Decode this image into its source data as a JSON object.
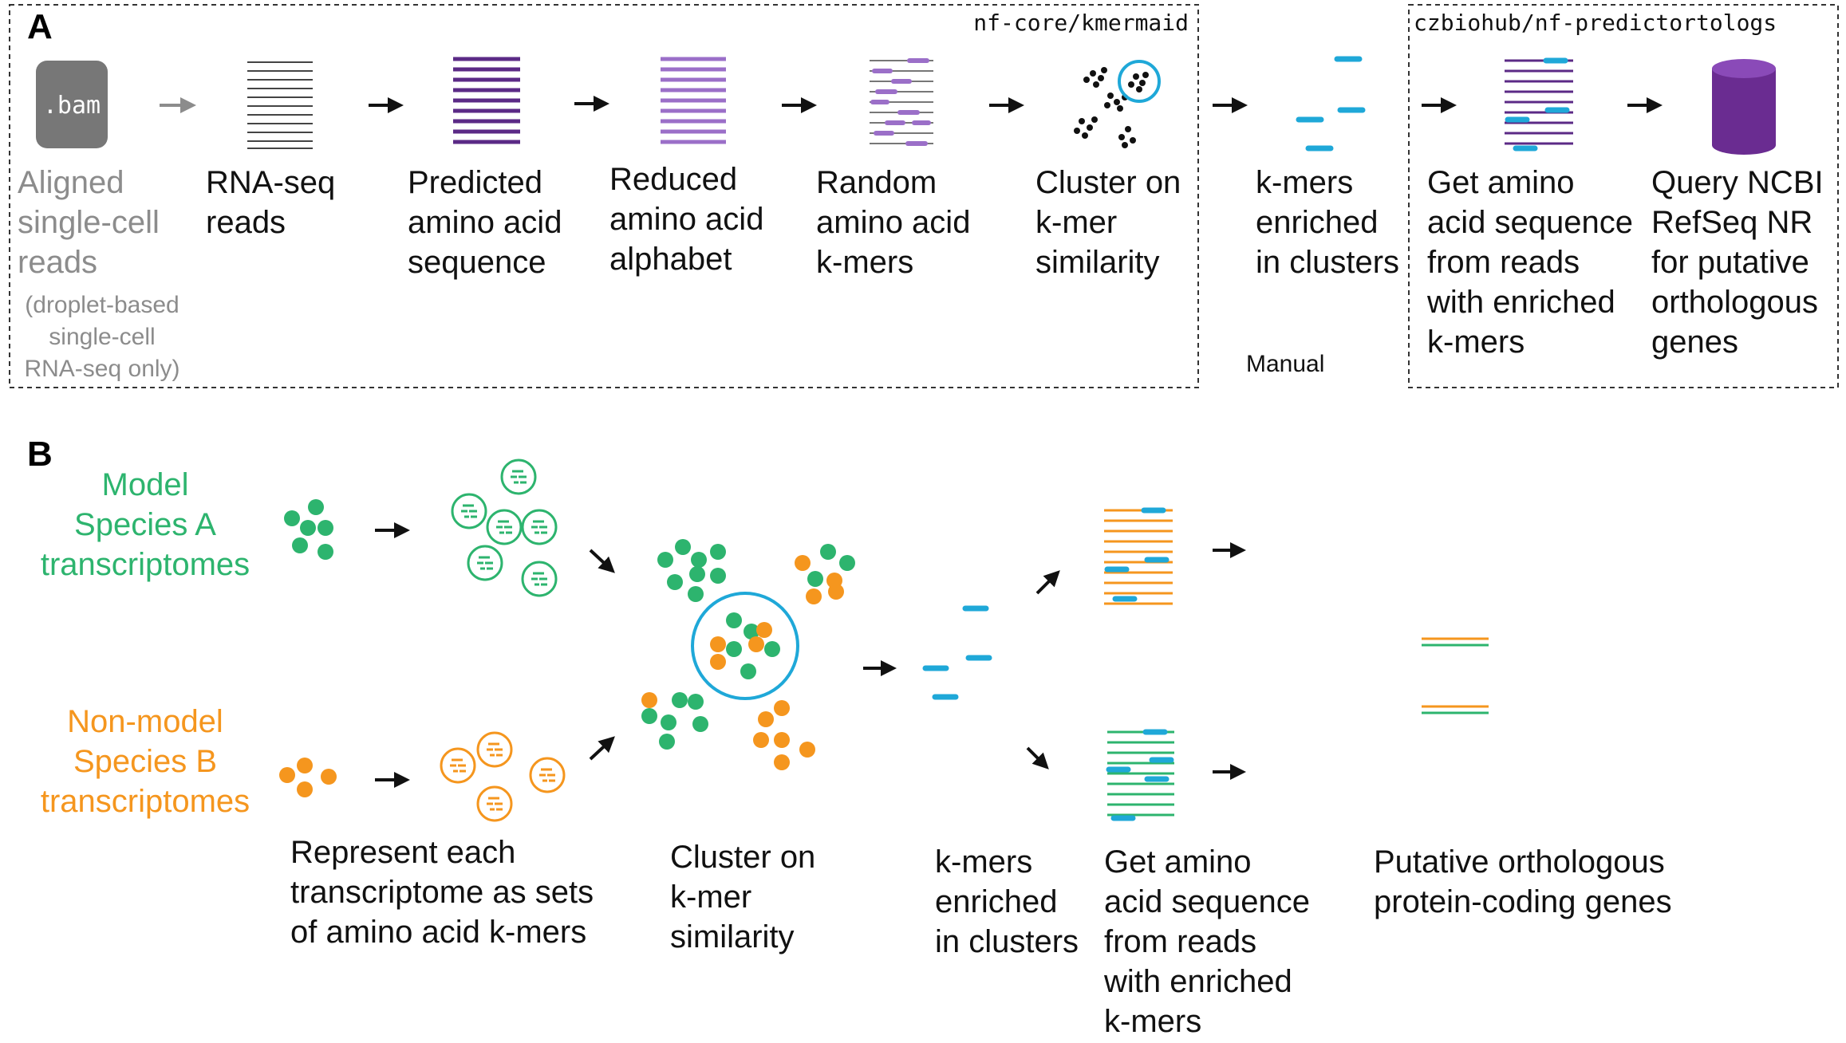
{
  "colors": {
    "purple": "#5b2a86",
    "light_purple": "#9b6fc8",
    "cyan": "#1fa8d8",
    "green": "#2db46e",
    "orange": "#f5961e",
    "gray": "#8c8c8c",
    "bam_gray": "#777777"
  },
  "panel_a": {
    "label": "A",
    "kmermaid_label": "nf-core/kmermaid",
    "predict_label": "czbiohub/nf-predictortologs",
    "bam_icon": ".bam",
    "manual_label": "Manual",
    "steps": [
      {
        "lines": [
          "Aligned",
          "single-cell",
          "reads"
        ],
        "note": [
          "(droplet-based",
          "single-cell",
          "RNA-seq only)"
        ]
      },
      {
        "lines": [
          "RNA-seq",
          "reads"
        ]
      },
      {
        "lines": [
          "Predicted",
          "amino acid",
          "sequence"
        ]
      },
      {
        "lines": [
          "Reduced",
          "amino acid",
          "alphabet"
        ]
      },
      {
        "lines": [
          "Random",
          "amino acid",
          "k-mers"
        ]
      },
      {
        "lines": [
          "Cluster on",
          "k-mer",
          "similarity"
        ]
      },
      {
        "lines": [
          "k-mers",
          "enriched",
          "in clusters"
        ]
      },
      {
        "lines": [
          "Get amino",
          "acid sequence",
          "from reads",
          "with enriched",
          "k-mers"
        ]
      },
      {
        "lines": [
          "Query NCBI",
          "RefSeq NR",
          "for putative",
          "orthologous",
          "genes"
        ]
      }
    ]
  },
  "panel_b": {
    "label": "B",
    "species_a": [
      "Model",
      "Species A",
      "transcriptomes"
    ],
    "species_b": [
      "Non-model",
      "Species B",
      "transcriptomes"
    ],
    "captions": [
      {
        "lines": [
          "Represent each",
          "transcriptome as sets",
          "of amino acid k-mers"
        ]
      },
      {
        "lines": [
          "Cluster on",
          "k-mer",
          "similarity"
        ]
      },
      {
        "lines": [
          "k-mers",
          "enriched",
          "in clusters"
        ]
      },
      {
        "lines": [
          "Get amino",
          "acid sequence",
          "from reads",
          "with enriched",
          "k-mers"
        ]
      },
      {
        "lines": [
          "Putative orthologous",
          "protein-coding genes"
        ]
      }
    ]
  }
}
